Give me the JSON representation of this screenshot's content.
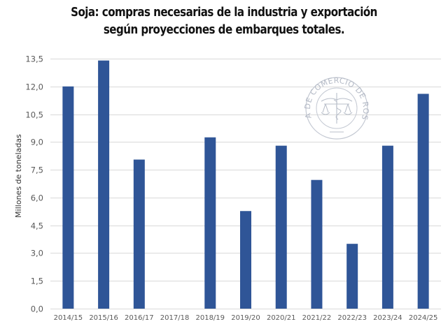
{
  "chart_data": {
    "type": "bar",
    "title": "Soja: compras necesarias de la industria y exportación según proyecciones de embarques totales.",
    "title_lines": [
      "Soja: compras necesarias de la industria y exportación",
      "según proyecciones de embarques totales."
    ],
    "xlabel": "",
    "ylabel": "Millones de toneladas",
    "categories": [
      "2014/15",
      "2015/16",
      "2016/17",
      "2017/18",
      "2018/19",
      "2019/20",
      "2020/21",
      "2021/22",
      "2022/23",
      "2023/24",
      "2024/25"
    ],
    "values": [
      12.0,
      13.4,
      8.05,
      0,
      9.25,
      5.27,
      8.8,
      6.95,
      3.5,
      8.8,
      11.6
    ],
    "ylim": [
      0,
      13.5
    ],
    "yticks": [
      0,
      1.5,
      3,
      4.5,
      6,
      7.5,
      9,
      10.5,
      12,
      13.5
    ],
    "ytick_labels": [
      "0,0",
      "1,5",
      "3,0",
      "4,5",
      "6,0",
      "7,5",
      "9,0",
      "10,5",
      "12,0",
      "13,5"
    ],
    "grid": true,
    "legend": "none",
    "bar_color": "#2F5597",
    "grid_color": "#D9D9D9",
    "watermark": "BOLSA DE COMERCIO DE ROSARIO"
  }
}
